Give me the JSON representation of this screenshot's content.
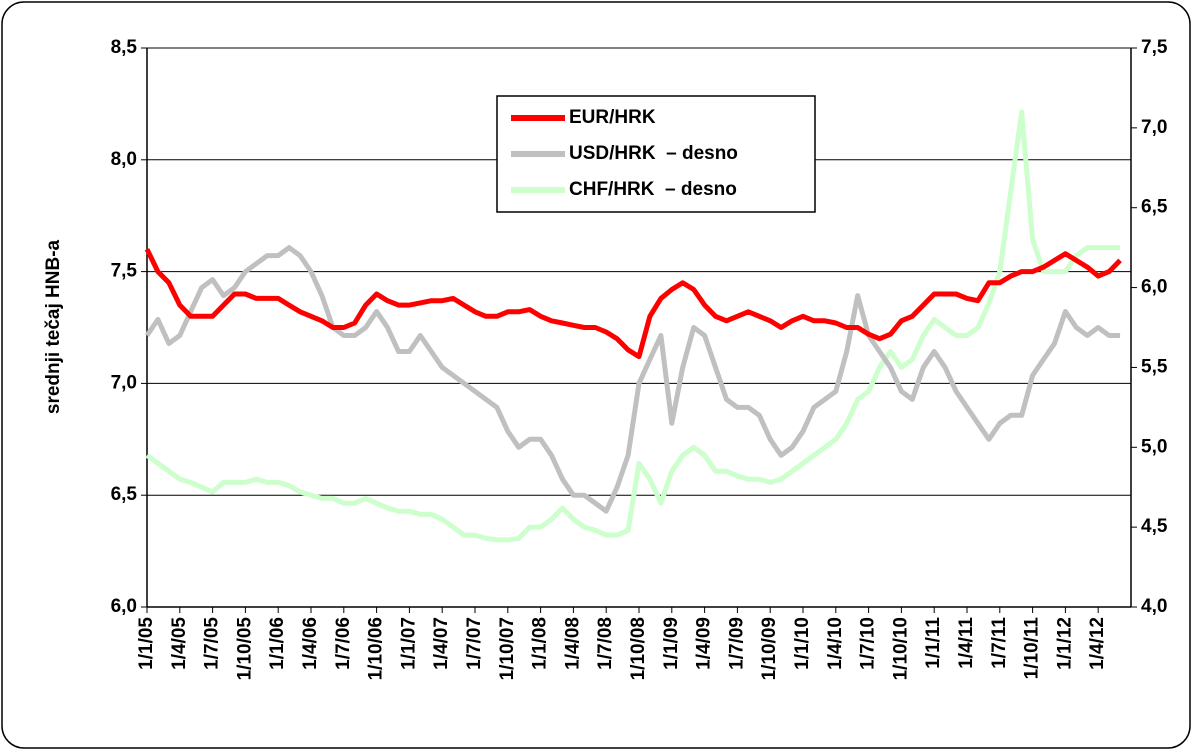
{
  "chart_data": {
    "type": "line",
    "y_label": "srednji tečaj HNB-a",
    "categories": [
      "1/1/05",
      null,
      null,
      "1/4/05",
      null,
      null,
      "1/7/05",
      null,
      null,
      "1/10/05",
      null,
      null,
      "1/1/06",
      null,
      null,
      "1/4/06",
      null,
      null,
      "1/7/06",
      null,
      null,
      "1/10/06",
      null,
      null,
      "1/1/07",
      null,
      null,
      "1/4/07",
      null,
      null,
      "1/7/07",
      null,
      null,
      "1/10/07",
      null,
      null,
      "1/1/08",
      null,
      null,
      "1/4/08",
      null,
      null,
      "1/7/08",
      null,
      null,
      "1/10/08",
      null,
      null,
      "1/1/09",
      null,
      null,
      "1/4/09",
      null,
      null,
      "1/7/09",
      null,
      null,
      "1/10/09",
      null,
      null,
      "1/1/10",
      null,
      null,
      "1/4/10",
      null,
      null,
      "1/7/10",
      null,
      null,
      "1/10/10",
      null,
      null,
      "1/1/11",
      null,
      null,
      "1/4/11",
      null,
      null,
      "1/7/11",
      null,
      null,
      "1/10/11",
      null,
      null,
      "1/1/12",
      null,
      null,
      "1/4/12",
      null,
      null
    ],
    "series": [
      {
        "name": "EUR/HRK",
        "color": "#ff0000",
        "axis": "y",
        "values": [
          7.6,
          7.5,
          7.45,
          7.35,
          7.3,
          7.3,
          7.3,
          7.35,
          7.4,
          7.4,
          7.38,
          7.38,
          7.38,
          7.35,
          7.32,
          7.3,
          7.28,
          7.25,
          7.25,
          7.27,
          7.35,
          7.4,
          7.37,
          7.35,
          7.35,
          7.36,
          7.37,
          7.37,
          7.38,
          7.35,
          7.32,
          7.3,
          7.3,
          7.32,
          7.32,
          7.33,
          7.3,
          7.28,
          7.27,
          7.26,
          7.25,
          7.25,
          7.23,
          7.2,
          7.15,
          7.12,
          7.3,
          7.38,
          7.42,
          7.45,
          7.42,
          7.35,
          7.3,
          7.28,
          7.3,
          7.32,
          7.3,
          7.28,
          7.25,
          7.28,
          7.3,
          7.28,
          7.28,
          7.27,
          7.25,
          7.25,
          7.22,
          7.2,
          7.22,
          7.28,
          7.3,
          7.35,
          7.4,
          7.4,
          7.4,
          7.38,
          7.37,
          7.45,
          7.45,
          7.48,
          7.5,
          7.5,
          7.52,
          7.55,
          7.58,
          7.55,
          7.52,
          7.48,
          7.5,
          7.55
        ]
      },
      {
        "name": "USD/HRK  – desno",
        "color": "#c0c0c0",
        "axis": "y2",
        "values": [
          5.7,
          5.8,
          5.65,
          5.7,
          5.85,
          6.0,
          6.05,
          5.95,
          6.0,
          6.1,
          6.15,
          6.2,
          6.2,
          6.25,
          6.2,
          6.1,
          5.95,
          5.75,
          5.7,
          5.7,
          5.75,
          5.85,
          5.75,
          5.6,
          5.6,
          5.7,
          5.6,
          5.5,
          5.45,
          5.4,
          5.35,
          5.3,
          5.25,
          5.1,
          5.0,
          5.05,
          5.05,
          4.95,
          4.8,
          4.7,
          4.7,
          4.65,
          4.6,
          4.75,
          4.95,
          5.4,
          5.55,
          5.7,
          5.15,
          5.5,
          5.75,
          5.7,
          5.5,
          5.3,
          5.25,
          5.25,
          5.2,
          5.05,
          4.95,
          5.0,
          5.1,
          5.25,
          5.3,
          5.35,
          5.6,
          5.95,
          5.7,
          5.6,
          5.5,
          5.35,
          5.3,
          5.5,
          5.6,
          5.5,
          5.35,
          5.25,
          5.15,
          5.05,
          5.15,
          5.2,
          5.2,
          5.45,
          5.55,
          5.65,
          5.85,
          5.75,
          5.7,
          5.75,
          5.7,
          5.7
        ]
      },
      {
        "name": "CHF/HRK  – desno",
        "color": "#ccffcc",
        "axis": "y2",
        "values": [
          4.95,
          4.9,
          4.85,
          4.8,
          4.78,
          4.75,
          4.72,
          4.78,
          4.78,
          4.78,
          4.8,
          4.78,
          4.78,
          4.76,
          4.72,
          4.7,
          4.68,
          4.68,
          4.65,
          4.65,
          4.68,
          4.65,
          4.62,
          4.6,
          4.6,
          4.58,
          4.58,
          4.55,
          4.5,
          4.45,
          4.45,
          4.43,
          4.42,
          4.42,
          4.43,
          4.5,
          4.5,
          4.55,
          4.62,
          4.55,
          4.5,
          4.48,
          4.45,
          4.45,
          4.48,
          4.9,
          4.8,
          4.65,
          4.85,
          4.95,
          5.0,
          4.95,
          4.85,
          4.85,
          4.82,
          4.8,
          4.8,
          4.78,
          4.8,
          4.85,
          4.9,
          4.95,
          5.0,
          5.05,
          5.15,
          5.3,
          5.35,
          5.5,
          5.6,
          5.5,
          5.55,
          5.7,
          5.8,
          5.75,
          5.7,
          5.7,
          5.75,
          5.9,
          6.1,
          6.6,
          7.1,
          6.3,
          6.1,
          6.1,
          6.1,
          6.2,
          6.25,
          6.25,
          6.25,
          6.25
        ]
      }
    ],
    "ylim": [
      6.0,
      8.5
    ],
    "yticks": [
      {
        "value": 6.0,
        "label": "6,0"
      },
      {
        "value": 6.5,
        "label": "6,5"
      },
      {
        "value": 7.0,
        "label": "7,0"
      },
      {
        "value": 7.5,
        "label": "7,5"
      },
      {
        "value": 8.0,
        "label": "8,0"
      },
      {
        "value": 8.5,
        "label": "8,5"
      }
    ],
    "y2lim": [
      4.0,
      7.5
    ],
    "y2ticks": [
      {
        "value": 4.0,
        "label": "4,0"
      },
      {
        "value": 4.5,
        "label": "4,5"
      },
      {
        "value": 5.0,
        "label": "5,0"
      },
      {
        "value": 5.5,
        "label": "5,5"
      },
      {
        "value": 6.0,
        "label": "6,0"
      },
      {
        "value": 6.5,
        "label": "6,5"
      },
      {
        "value": 7.0,
        "label": "7,0"
      },
      {
        "value": 7.5,
        "label": "7,5"
      }
    ],
    "grid": true,
    "legend": "top"
  }
}
